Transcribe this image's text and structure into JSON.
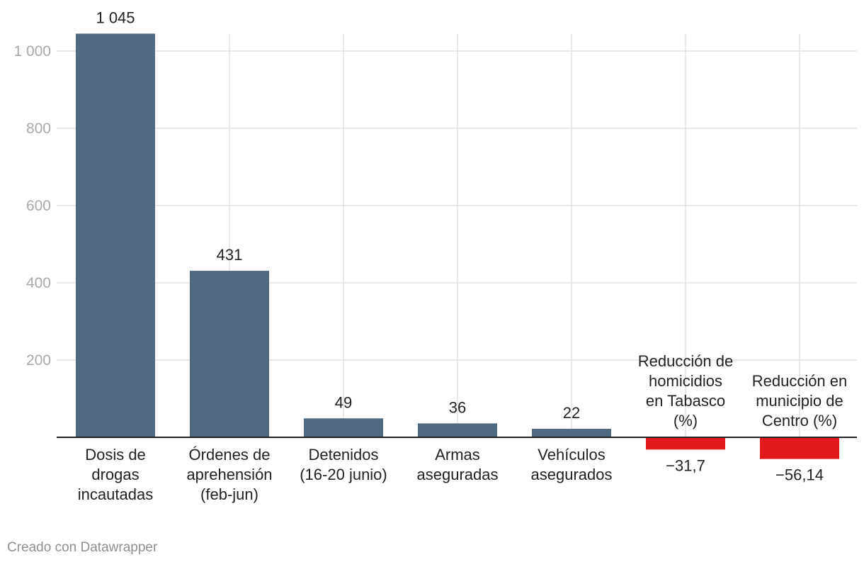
{
  "chart_data": {
    "type": "bar",
    "categories": [
      [
        "Dosis de",
        "drogas",
        "incautadas"
      ],
      [
        "Órdenes de",
        "aprehensión",
        "(feb-jun)"
      ],
      [
        "Detenidos",
        "(16-20 junio)"
      ],
      [
        "Armas",
        "aseguradas"
      ],
      [
        "Vehículos",
        "asegurados"
      ],
      [
        "Reducción de",
        "homicidios",
        "en Tabasco",
        "(%)"
      ],
      [
        "Reducción en",
        "municipio de",
        "Centro (%)"
      ]
    ],
    "values": [
      1045,
      431,
      49,
      36,
      22,
      -31.7,
      -56.14
    ],
    "value_labels": [
      "1 045",
      "431",
      "49",
      "36",
      "22",
      "−31,7",
      "−56,14"
    ],
    "yticks": [
      200,
      400,
      600,
      800,
      1000
    ],
    "ytick_labels": [
      "200",
      "400",
      "600",
      "800",
      "1 000"
    ],
    "ylim": [
      -56.14,
      1045
    ],
    "grid": true,
    "colors": {
      "positive": "#4f6980",
      "negative": "#e31a1c",
      "grid": "#e2e2e2",
      "axis": "#222222"
    }
  },
  "footer": {
    "credit": "Creado con Datawrapper"
  }
}
